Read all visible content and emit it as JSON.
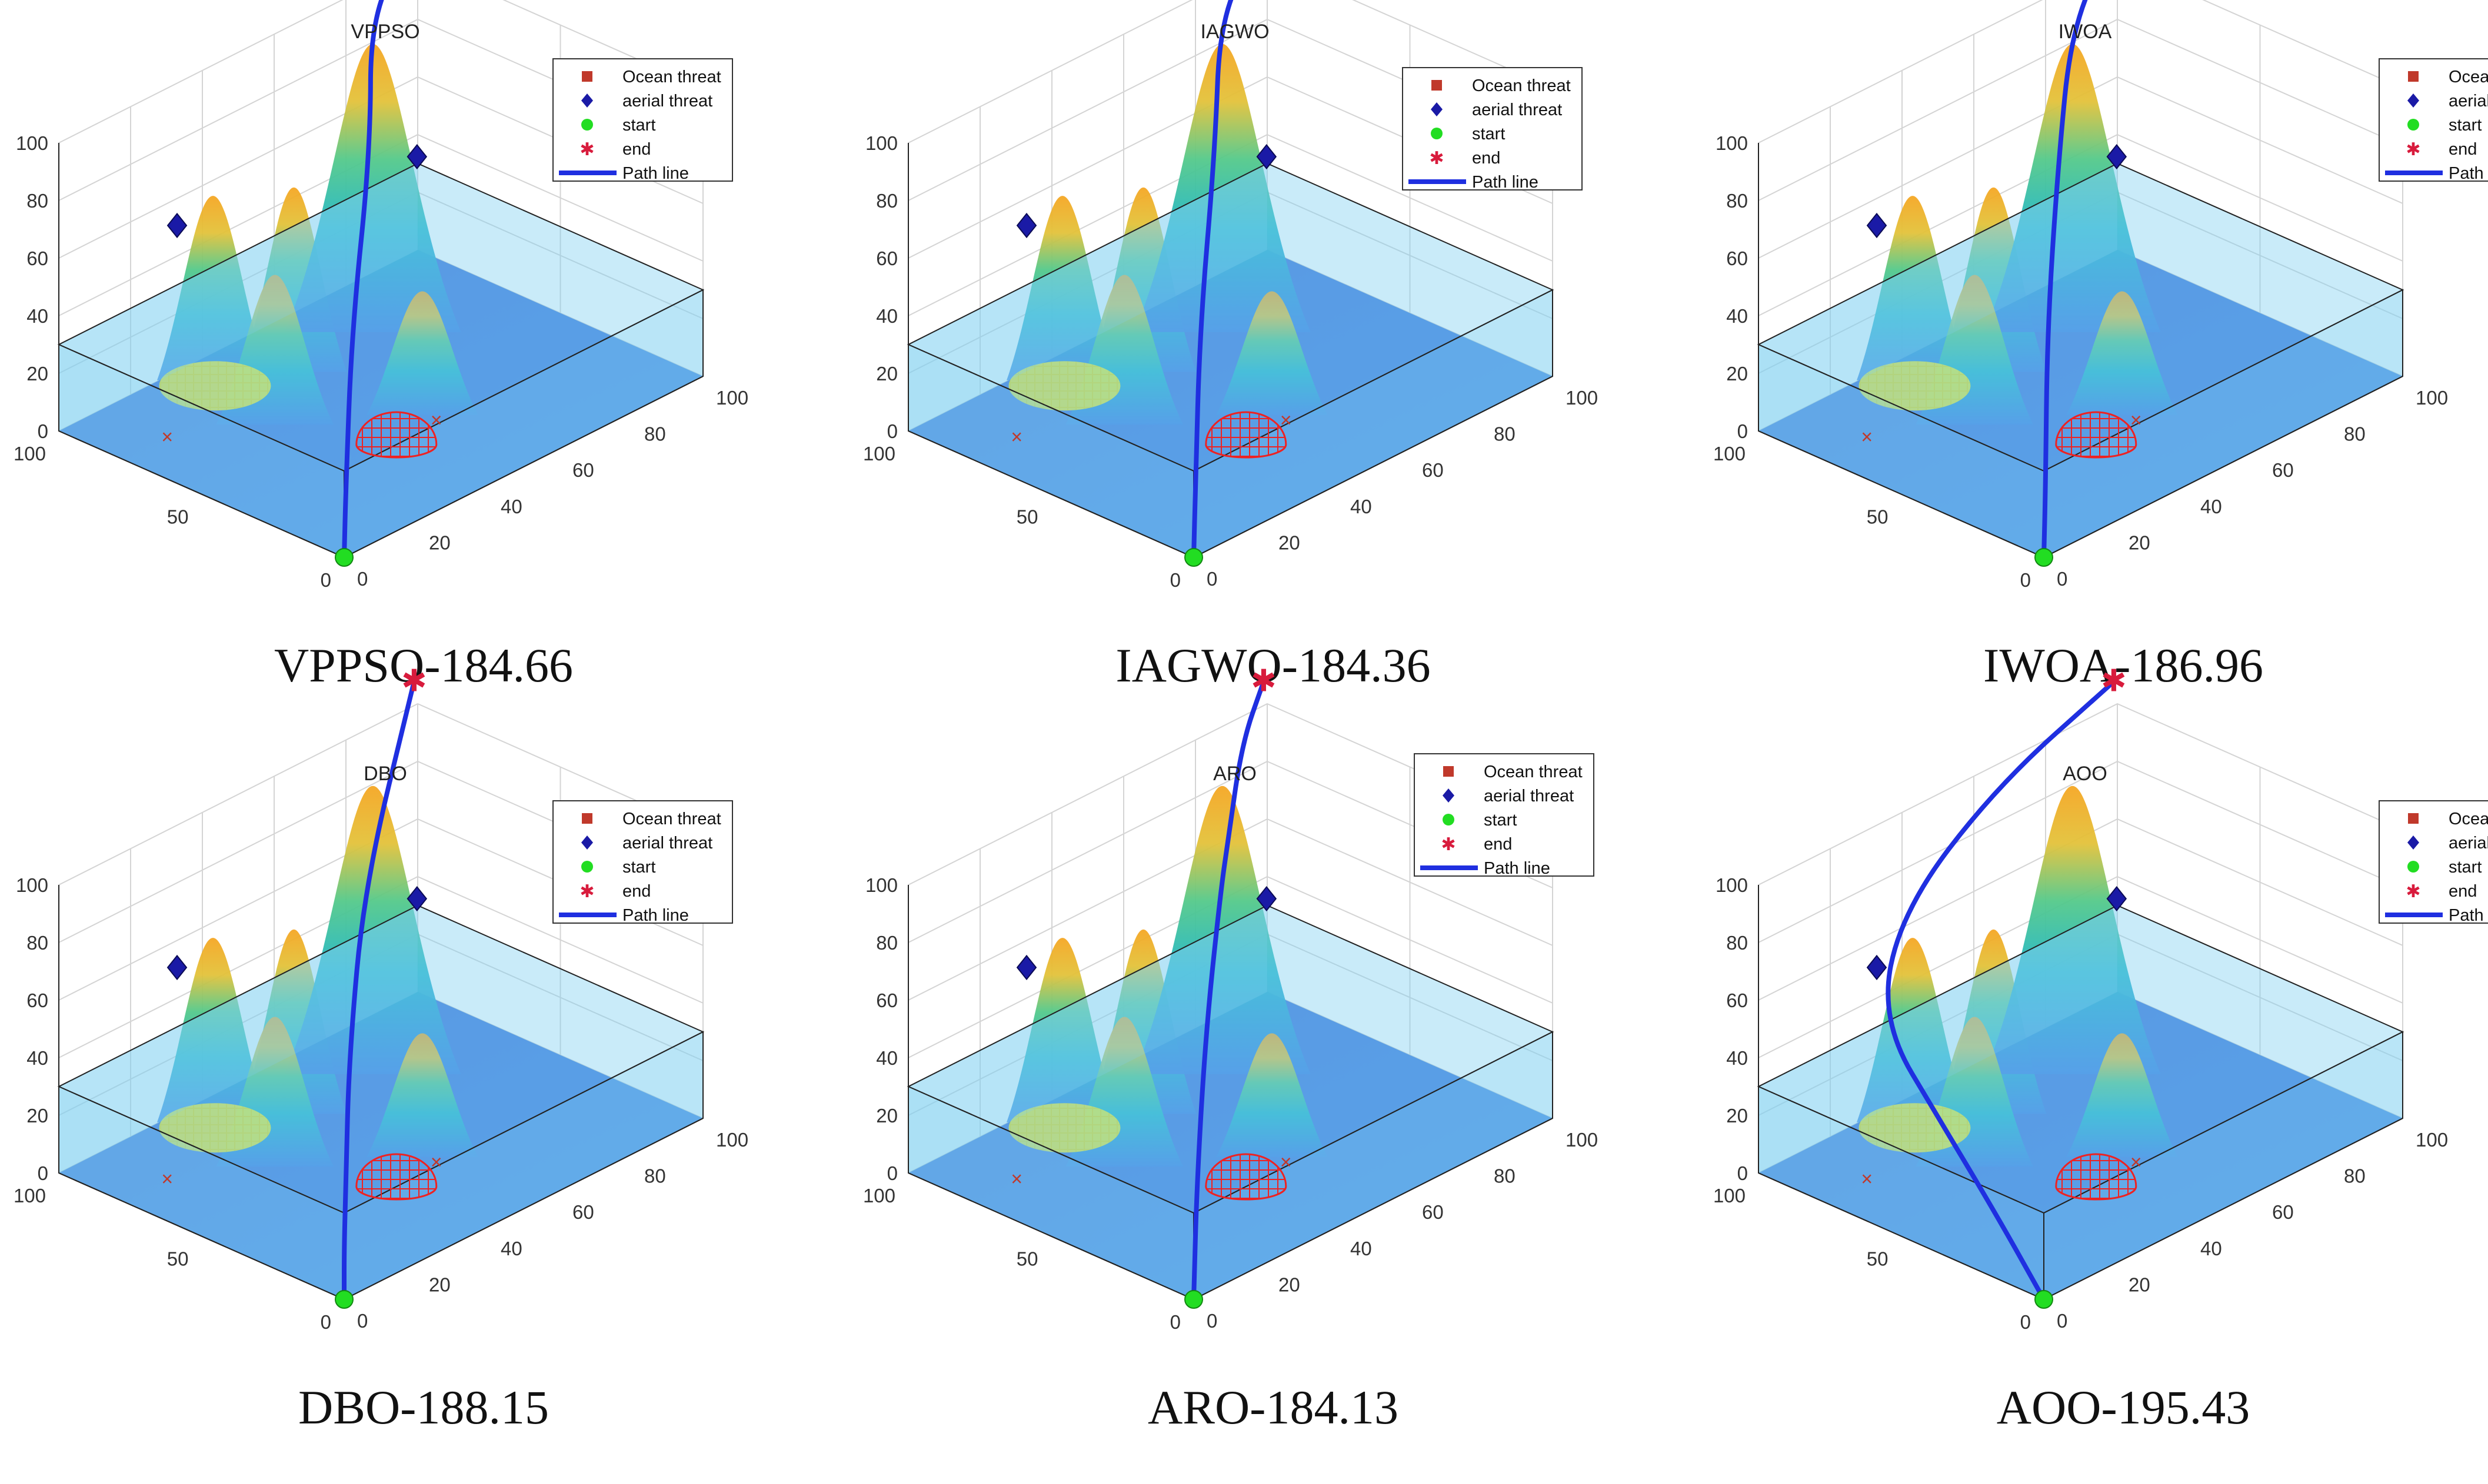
{
  "figure": {
    "legend_labels": [
      "Ocean threat",
      "aerial threat",
      "start",
      "end",
      "Path line"
    ],
    "colors": {
      "ocean_threat": "#c0392b",
      "aerial_threat": "#1a1aa6",
      "start": "#22dd22",
      "end": "#d81b3c",
      "path": "#1f2fe0",
      "water": "#7fcff0",
      "ground": "#3f7fe0",
      "threat_dome": "#ee2222",
      "yellow_dome": "#f5f02a"
    },
    "icons": [
      "square-marker-icon",
      "diamond-marker-icon",
      "circle-marker-icon",
      "star-marker-icon",
      "line-marker-icon"
    ]
  },
  "chart_data": [
    {
      "type": "line3d",
      "title": "VPPSO",
      "caption": "VPPSO-184.66",
      "z_ticks": [
        "0",
        "20",
        "40",
        "60",
        "80",
        "100"
      ],
      "x_ticks": [
        "0",
        "20",
        "40",
        "60",
        "80",
        "100"
      ],
      "y_ticks": [
        "0",
        "50",
        "100"
      ],
      "xlim": [
        0,
        100
      ],
      "ylim": [
        0,
        100
      ],
      "zlim": [
        0,
        100
      ],
      "legend": [
        "Ocean threat",
        "aerial threat",
        "start",
        "end",
        "Path line"
      ],
      "path": [
        [
          0,
          0,
          0
        ],
        [
          10,
          12,
          12
        ],
        [
          30,
          35,
          45
        ],
        [
          55,
          60,
          80
        ],
        [
          75,
          85,
          105
        ],
        [
          95,
          95,
          113
        ]
      ]
    },
    {
      "type": "line3d",
      "title": "IAGWO",
      "caption": "IAGWO-184.36",
      "z_ticks": [
        "0",
        "20",
        "40",
        "60",
        "80",
        "100"
      ],
      "x_ticks": [
        "0",
        "20",
        "40",
        "60",
        "80",
        "100"
      ],
      "y_ticks": [
        "0",
        "50",
        "100"
      ],
      "xlim": [
        0,
        100
      ],
      "ylim": [
        0,
        100
      ],
      "zlim": [
        0,
        100
      ],
      "legend": [
        "Ocean threat",
        "aerial threat",
        "start",
        "end",
        "Path line"
      ],
      "path": [
        [
          0,
          0,
          0
        ],
        [
          10,
          12,
          12
        ],
        [
          28,
          33,
          48
        ],
        [
          52,
          58,
          82
        ],
        [
          75,
          85,
          105
        ],
        [
          95,
          95,
          113
        ]
      ]
    },
    {
      "type": "line3d",
      "title": "IWOA",
      "caption": "IWOA-186.96",
      "z_ticks": [
        "0",
        "20",
        "40",
        "60",
        "80",
        "100"
      ],
      "x_ticks": [
        "0",
        "20",
        "40",
        "60",
        "80",
        "100"
      ],
      "y_ticks": [
        "0",
        "50",
        "100"
      ],
      "xlim": [
        0,
        100
      ],
      "ylim": [
        0,
        100
      ],
      "zlim": [
        0,
        100
      ],
      "legend": [
        "Ocean threat",
        "aerial threat",
        "start",
        "end",
        "Path line"
      ],
      "path": [
        [
          0,
          0,
          0
        ],
        [
          10,
          12,
          12
        ],
        [
          28,
          34,
          46
        ],
        [
          50,
          58,
          78
        ],
        [
          73,
          82,
          103
        ],
        [
          95,
          95,
          113
        ]
      ]
    },
    {
      "type": "line3d",
      "title": "DBO",
      "caption": "DBO-188.15",
      "z_ticks": [
        "0",
        "20",
        "40",
        "60",
        "80",
        "100"
      ],
      "x_ticks": [
        "0",
        "20",
        "40",
        "60",
        "80",
        "100"
      ],
      "y_ticks": [
        "0",
        "50",
        "100"
      ],
      "xlim": [
        0,
        100
      ],
      "ylim": [
        0,
        100
      ],
      "zlim": [
        0,
        100
      ],
      "legend": [
        "Ocean threat",
        "aerial threat",
        "start",
        "end",
        "Path line"
      ],
      "path": [
        [
          0,
          0,
          0
        ],
        [
          0,
          0,
          18
        ],
        [
          10,
          12,
          28
        ],
        [
          30,
          36,
          50
        ],
        [
          55,
          62,
          82
        ],
        [
          95,
          95,
          113
        ]
      ]
    },
    {
      "type": "line3d",
      "title": "ARO",
      "caption": "ARO-184.13",
      "z_ticks": [
        "0",
        "20",
        "40",
        "60",
        "80",
        "100"
      ],
      "x_ticks": [
        "0",
        "20",
        "40",
        "60",
        "80",
        "100"
      ],
      "y_ticks": [
        "0",
        "50",
        "100"
      ],
      "xlim": [
        0,
        100
      ],
      "ylim": [
        0,
        100
      ],
      "zlim": [
        0,
        100
      ],
      "legend": [
        "Ocean threat",
        "aerial threat",
        "start",
        "end",
        "Path line"
      ],
      "path": [
        [
          0,
          0,
          0
        ],
        [
          20,
          24,
          18
        ],
        [
          40,
          46,
          48
        ],
        [
          60,
          66,
          75
        ],
        [
          70,
          76,
          82
        ],
        [
          85,
          90,
          100
        ],
        [
          95,
          95,
          113
        ]
      ]
    },
    {
      "type": "line3d",
      "title": "AOO",
      "caption": "AOO-195.43",
      "z_ticks": [
        "0",
        "20",
        "40",
        "60",
        "80",
        "100"
      ],
      "x_ticks": [
        "0",
        "20",
        "40",
        "60",
        "80",
        "100"
      ],
      "y_ticks": [
        "0",
        "50",
        "100"
      ],
      "xlim": [
        0,
        100
      ],
      "ylim": [
        0,
        100
      ],
      "zlim": [
        0,
        100
      ],
      "legend": [
        "Ocean threat",
        "aerial threat",
        "start",
        "end",
        "Path line"
      ],
      "path": [
        [
          0,
          0,
          0
        ],
        [
          5,
          22,
          15
        ],
        [
          8,
          45,
          35
        ],
        [
          10,
          70,
          60
        ],
        [
          28,
          85,
          80
        ],
        [
          60,
          92,
          100
        ],
        [
          95,
          95,
          113
        ]
      ]
    }
  ]
}
